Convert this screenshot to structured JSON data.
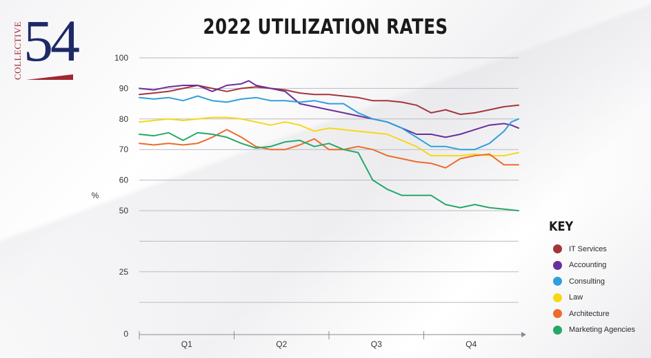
{
  "logo": {
    "word": "COLLECTIVE",
    "number": "54"
  },
  "chart_data": {
    "type": "line",
    "title": "2022 UTILIZATION RATES",
    "xlabel": "",
    "ylabel": "%",
    "x_categories": [
      "Q1",
      "Q2",
      "Q3",
      "Q4"
    ],
    "x_range": [
      0,
      52
    ],
    "y_ticks": [
      "100",
      "90",
      "80",
      "70",
      "60",
      "50",
      "25",
      "0"
    ],
    "y_tick_values": [
      100,
      90,
      80,
      70,
      60,
      50,
      25,
      0
    ],
    "grid": true,
    "legend_title": "KEY",
    "legend_position": "right",
    "series": [
      {
        "name": "IT Services",
        "color": "#a3353a",
        "x": [
          0,
          2,
          4,
          6,
          8,
          10,
          12,
          14,
          16,
          18,
          20,
          22,
          24,
          26,
          28,
          30,
          32,
          34,
          36,
          38,
          40,
          42,
          44,
          46,
          48,
          50,
          52
        ],
        "values": [
          88,
          88.5,
          89,
          90,
          91,
          90,
          89,
          90,
          90.5,
          90,
          89.5,
          88.5,
          88,
          88,
          87.5,
          87,
          86,
          86,
          85.5,
          84.5,
          82,
          83,
          81.5,
          82,
          83,
          84,
          84.5
        ]
      },
      {
        "name": "Accounting",
        "color": "#6a2e9b",
        "x": [
          0,
          2,
          4,
          6,
          8,
          10,
          12,
          14,
          15,
          16,
          18,
          20,
          22,
          24,
          26,
          28,
          30,
          32,
          34,
          36,
          38,
          40,
          42,
          44,
          46,
          48,
          50,
          51,
          52
        ],
        "values": [
          90,
          89.5,
          90.5,
          91,
          91,
          89,
          91,
          91.5,
          92.5,
          91,
          90,
          89,
          85,
          84,
          83,
          82,
          81,
          80,
          79,
          77,
          75,
          75,
          74,
          75,
          76.5,
          78,
          78.5,
          78,
          77
        ]
      },
      {
        "name": "Consulting",
        "color": "#2f9fdc",
        "x": [
          0,
          2,
          4,
          6,
          8,
          10,
          12,
          14,
          16,
          18,
          20,
          22,
          24,
          26,
          28,
          30,
          32,
          34,
          36,
          38,
          40,
          42,
          44,
          46,
          48,
          50,
          51,
          52
        ],
        "values": [
          87,
          86.5,
          87,
          86,
          87.5,
          86,
          85.5,
          86.5,
          87,
          86,
          86,
          85.5,
          86,
          85,
          85,
          82,
          80,
          79,
          77,
          74,
          71,
          71,
          70,
          70,
          72,
          76,
          79,
          80
        ]
      },
      {
        "name": "Law",
        "color": "#f5d816",
        "x": [
          0,
          2,
          4,
          6,
          8,
          10,
          12,
          14,
          16,
          18,
          20,
          22,
          24,
          26,
          28,
          30,
          32,
          34,
          36,
          38,
          40,
          42,
          44,
          46,
          48,
          50,
          52
        ],
        "values": [
          79,
          79.5,
          80,
          79.5,
          80,
          80.5,
          80.5,
          80,
          79,
          78,
          79,
          78,
          76,
          77,
          76.5,
          76,
          75.5,
          75,
          73,
          71,
          68,
          68,
          68,
          68.5,
          68,
          68,
          69
        ]
      },
      {
        "name": "Architecture",
        "color": "#ee6a2b",
        "x": [
          0,
          2,
          4,
          6,
          8,
          10,
          12,
          14,
          16,
          18,
          20,
          22,
          24,
          26,
          28,
          30,
          32,
          34,
          36,
          38,
          40,
          42,
          44,
          46,
          48,
          50,
          52
        ],
        "values": [
          72,
          71.5,
          72,
          71.5,
          72,
          74,
          76.5,
          74,
          71,
          70,
          70,
          71.5,
          73.5,
          70,
          70,
          71,
          70,
          68,
          67,
          66,
          65.5,
          64,
          67,
          68,
          68.5,
          65,
          65
        ]
      },
      {
        "name": "Marketing Agencies",
        "color": "#25a869",
        "x": [
          0,
          2,
          4,
          6,
          8,
          10,
          12,
          14,
          16,
          18,
          20,
          22,
          24,
          26,
          28,
          30,
          32,
          34,
          36,
          38,
          40,
          42,
          44,
          46,
          48,
          50,
          52
        ],
        "values": [
          75,
          74.5,
          75.5,
          73,
          75.5,
          75,
          74,
          72,
          70.5,
          71,
          72.5,
          73,
          71,
          72,
          70,
          69,
          60,
          57,
          55,
          55,
          55,
          52,
          51,
          52,
          51,
          50.5,
          50
        ]
      }
    ]
  }
}
